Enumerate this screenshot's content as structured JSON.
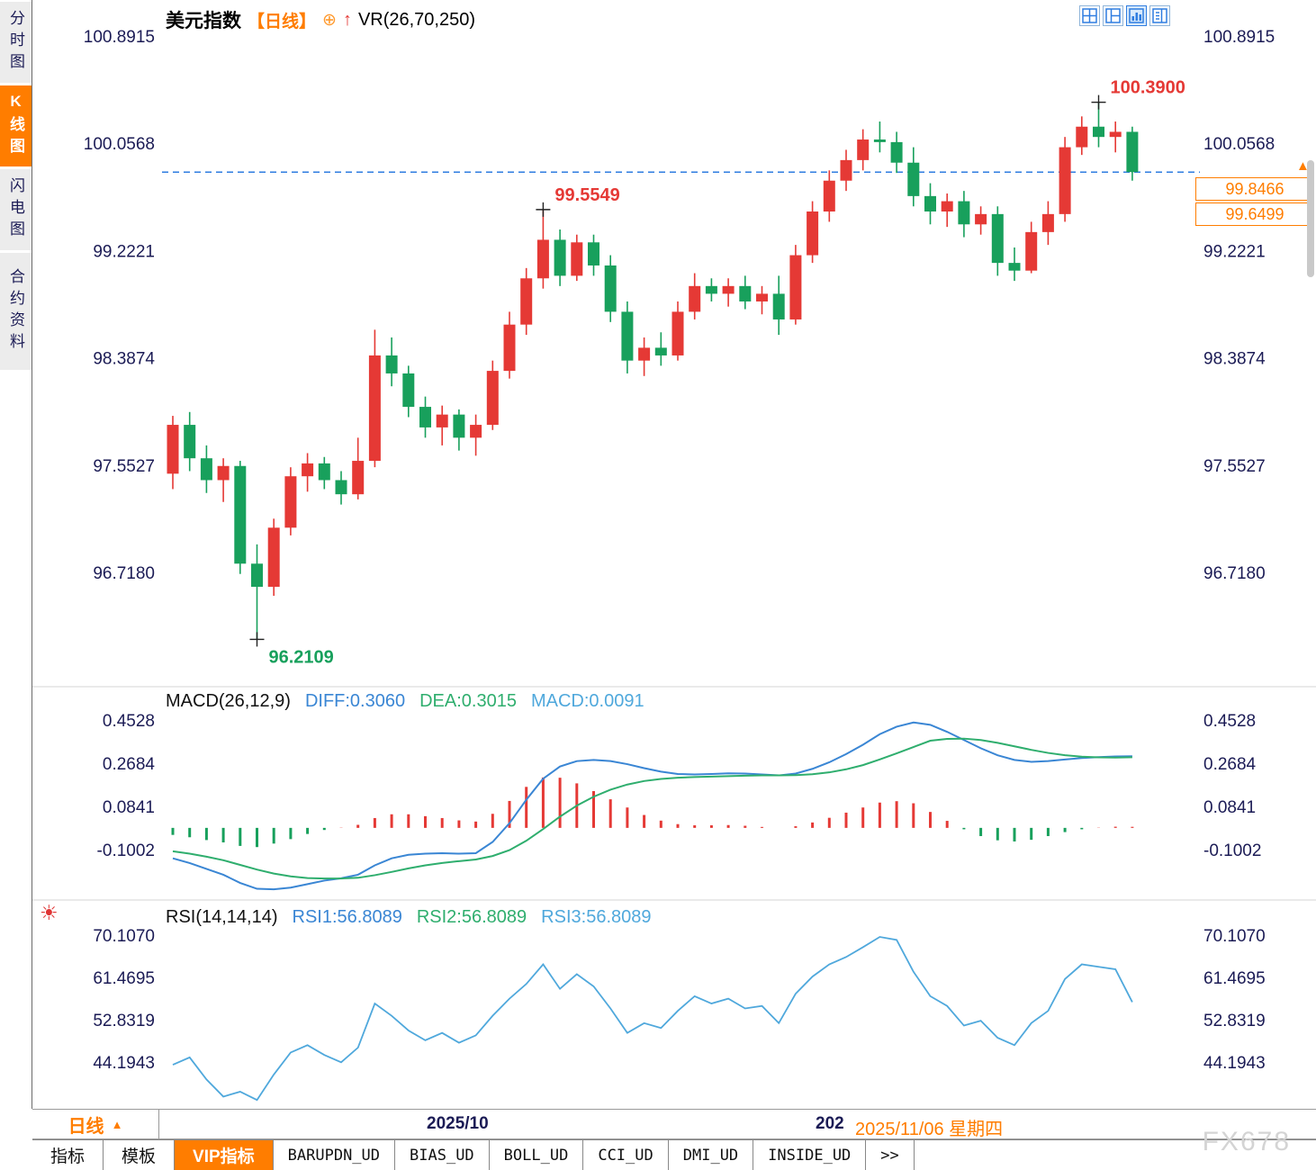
{
  "app": {
    "colors": {
      "up": "#e53935",
      "down": "#18a05c",
      "accent": "#ff7d00",
      "blue": "#2f7de0",
      "diff": "#3a86d4",
      "dea": "#2fae6e",
      "rsiline": "#4fa8dc",
      "tick_text": "#1b1b55"
    },
    "watermark": "FX678"
  },
  "icons": {
    "target": "⊕",
    "up_arrow": "↑",
    "sun": "☀",
    "triangle_up": "▲"
  },
  "sidebar": {
    "items": [
      {
        "label": "分时图",
        "active": false
      },
      {
        "label": "K线图",
        "active": true
      },
      {
        "label": "闪电图",
        "active": false
      },
      {
        "label": "合约资料",
        "active": false
      }
    ]
  },
  "header": {
    "symbol": "美元指数",
    "period_tag": "【日线】",
    "indicator": "VR(26,70,250)"
  },
  "price_labels": {
    "current": "99.8466",
    "previous": "99.6499"
  },
  "bottom_axis": {
    "period": "日线",
    "label_1": "2025/10",
    "label_2": "202",
    "label_3": "2025/11/06 星期四"
  },
  "tabs": {
    "items": [
      {
        "label": "指标"
      },
      {
        "label": "模板"
      },
      {
        "label": "VIP指标",
        "active": true
      },
      {
        "label": "BARUPDN_UD"
      },
      {
        "label": "BIAS_UD"
      },
      {
        "label": "BOLL_UD"
      },
      {
        "label": "CCI_UD"
      },
      {
        "label": "DMI_UD"
      },
      {
        "label": "INSIDE_UD"
      },
      {
        "label": ">>"
      }
    ]
  },
  "chart_data": {
    "type": "candlestick",
    "title": "美元指数 日线",
    "price": {
      "axis_ticks": [
        "100.8915",
        "100.0568",
        "99.2221",
        "98.3874",
        "97.5527",
        "96.7180"
      ],
      "current_price": 99.8466,
      "annotations": [
        {
          "index": 5,
          "price": 96.2109,
          "label": "96.2109",
          "color": "down",
          "pos": "below"
        },
        {
          "index": 22,
          "price": 99.5549,
          "label": "99.5549",
          "color": "up",
          "pos": "above"
        },
        {
          "index": 55,
          "price": 100.39,
          "label": "100.3900",
          "color": "up",
          "pos": "above"
        }
      ],
      "candles": [
        [
          97.5,
          97.95,
          97.38,
          97.88
        ],
        [
          97.88,
          97.98,
          97.52,
          97.62
        ],
        [
          97.62,
          97.72,
          97.35,
          97.45
        ],
        [
          97.45,
          97.62,
          97.28,
          97.56
        ],
        [
          97.56,
          97.6,
          96.72,
          96.8
        ],
        [
          96.8,
          96.95,
          96.2109,
          96.62
        ],
        [
          96.62,
          97.15,
          96.55,
          97.08
        ],
        [
          97.08,
          97.55,
          97.02,
          97.48
        ],
        [
          97.48,
          97.66,
          97.36,
          97.58
        ],
        [
          97.58,
          97.63,
          97.38,
          97.45
        ],
        [
          97.45,
          97.52,
          97.26,
          97.34
        ],
        [
          97.34,
          97.78,
          97.3,
          97.6
        ],
        [
          97.6,
          98.62,
          97.55,
          98.42
        ],
        [
          98.42,
          98.56,
          98.18,
          98.28
        ],
        [
          98.28,
          98.34,
          97.94,
          98.02
        ],
        [
          98.02,
          98.1,
          97.78,
          97.86
        ],
        [
          97.86,
          98.03,
          97.72,
          97.96
        ],
        [
          97.96,
          98.0,
          97.68,
          97.78
        ],
        [
          97.78,
          97.96,
          97.64,
          97.88
        ],
        [
          97.88,
          98.38,
          97.84,
          98.3
        ],
        [
          98.3,
          98.76,
          98.24,
          98.66
        ],
        [
          98.66,
          99.1,
          98.58,
          99.02
        ],
        [
          99.02,
          99.5549,
          98.94,
          99.32
        ],
        [
          99.32,
          99.4,
          98.96,
          99.04
        ],
        [
          99.04,
          99.36,
          99.0,
          99.3
        ],
        [
          99.3,
          99.36,
          99.04,
          99.12
        ],
        [
          99.12,
          99.2,
          98.68,
          98.76
        ],
        [
          98.76,
          98.84,
          98.28,
          98.38
        ],
        [
          98.38,
          98.56,
          98.26,
          98.48
        ],
        [
          98.48,
          98.6,
          98.34,
          98.42
        ],
        [
          98.42,
          98.84,
          98.38,
          98.76
        ],
        [
          98.76,
          99.06,
          98.7,
          98.96
        ],
        [
          98.96,
          99.02,
          98.84,
          98.9
        ],
        [
          98.9,
          99.02,
          98.8,
          98.96
        ],
        [
          98.96,
          99.04,
          98.78,
          98.84
        ],
        [
          98.84,
          98.96,
          98.74,
          98.9
        ],
        [
          98.9,
          99.04,
          98.58,
          98.7
        ],
        [
          98.7,
          99.28,
          98.66,
          99.2
        ],
        [
          99.2,
          99.62,
          99.14,
          99.54
        ],
        [
          99.54,
          99.86,
          99.46,
          99.78
        ],
        [
          99.78,
          100.02,
          99.7,
          99.94
        ],
        [
          99.94,
          100.18,
          99.86,
          100.1
        ],
        [
          100.1,
          100.24,
          100.0,
          100.08
        ],
        [
          100.08,
          100.16,
          99.84,
          99.92
        ],
        [
          99.92,
          100.04,
          99.58,
          99.66
        ],
        [
          99.66,
          99.76,
          99.44,
          99.54
        ],
        [
          99.54,
          99.68,
          99.42,
          99.62
        ],
        [
          99.62,
          99.7,
          99.34,
          99.44
        ],
        [
          99.44,
          99.58,
          99.36,
          99.52
        ],
        [
          99.52,
          99.58,
          99.04,
          99.14
        ],
        [
          99.14,
          99.26,
          99.0,
          99.08
        ],
        [
          99.08,
          99.46,
          99.06,
          99.38
        ],
        [
          99.38,
          99.62,
          99.28,
          99.52
        ],
        [
          99.52,
          100.12,
          99.46,
          100.04
        ],
        [
          100.04,
          100.28,
          99.98,
          100.2
        ],
        [
          100.2,
          100.39,
          100.04,
          100.12
        ],
        [
          100.12,
          100.24,
          100.0,
          100.16
        ],
        [
          100.16,
          100.2,
          99.78,
          99.8466
        ]
      ]
    },
    "macd": {
      "params": "MACD(26,12,9)",
      "diff_label": "DIFF:0.3060",
      "dea_label": "DEA:0.3015",
      "macd_label": "MACD:0.0091",
      "axis_ticks": [
        "0.4528",
        "0.2684",
        "0.0841",
        "-0.1002"
      ],
      "diff": [
        -0.13,
        -0.15,
        -0.175,
        -0.2,
        -0.235,
        -0.26,
        -0.262,
        -0.255,
        -0.24,
        -0.225,
        -0.215,
        -0.2,
        -0.16,
        -0.13,
        -0.115,
        -0.11,
        -0.108,
        -0.11,
        -0.108,
        -0.06,
        0.02,
        0.12,
        0.21,
        0.262,
        0.285,
        0.29,
        0.285,
        0.272,
        0.255,
        0.24,
        0.23,
        0.228,
        0.23,
        0.233,
        0.232,
        0.228,
        0.224,
        0.232,
        0.252,
        0.28,
        0.315,
        0.355,
        0.4,
        0.432,
        0.45,
        0.44,
        0.41,
        0.375,
        0.34,
        0.31,
        0.29,
        0.282,
        0.285,
        0.292,
        0.298,
        0.302,
        0.305,
        0.306
      ],
      "dea": [
        -0.1,
        -0.11,
        -0.123,
        -0.138,
        -0.158,
        -0.178,
        -0.195,
        -0.207,
        -0.214,
        -0.216,
        -0.216,
        -0.213,
        -0.202,
        -0.188,
        -0.173,
        -0.16,
        -0.15,
        -0.142,
        -0.135,
        -0.12,
        -0.095,
        -0.055,
        -0.005,
        0.048,
        0.095,
        0.133,
        0.163,
        0.185,
        0.2,
        0.209,
        0.214,
        0.217,
        0.219,
        0.221,
        0.223,
        0.224,
        0.224,
        0.225,
        0.229,
        0.237,
        0.25,
        0.268,
        0.292,
        0.318,
        0.345,
        0.372,
        0.38,
        0.381,
        0.375,
        0.363,
        0.348,
        0.333,
        0.32,
        0.31,
        0.304,
        0.301,
        0.3,
        0.3015
      ]
    },
    "rsi": {
      "params": "RSI(14,14,14)",
      "rsi1_label": "RSI1:56.8089",
      "rsi2_label": "RSI2:56.8089",
      "rsi3_label": "RSI3:56.8089",
      "axis_ticks": [
        "70.1070",
        "61.4695",
        "52.8319",
        "44.1943"
      ],
      "values": [
        44.0,
        45.5,
        41.0,
        37.5,
        38.5,
        36.8,
        42.0,
        46.5,
        48.0,
        46.0,
        44.5,
        47.5,
        56.5,
        54.0,
        51.0,
        49.0,
        50.5,
        48.5,
        50.0,
        54.0,
        57.5,
        60.5,
        64.5,
        59.5,
        62.5,
        60.0,
        55.5,
        50.5,
        52.5,
        51.5,
        55.0,
        58.0,
        56.5,
        57.5,
        55.5,
        56.0,
        52.5,
        58.5,
        62.0,
        64.5,
        66.0,
        68.0,
        70.1,
        69.5,
        63.0,
        58.0,
        56.0,
        52.0,
        53.0,
        49.5,
        48.0,
        52.5,
        55.0,
        61.5,
        64.5,
        64.0,
        63.5,
        56.8
      ]
    }
  }
}
